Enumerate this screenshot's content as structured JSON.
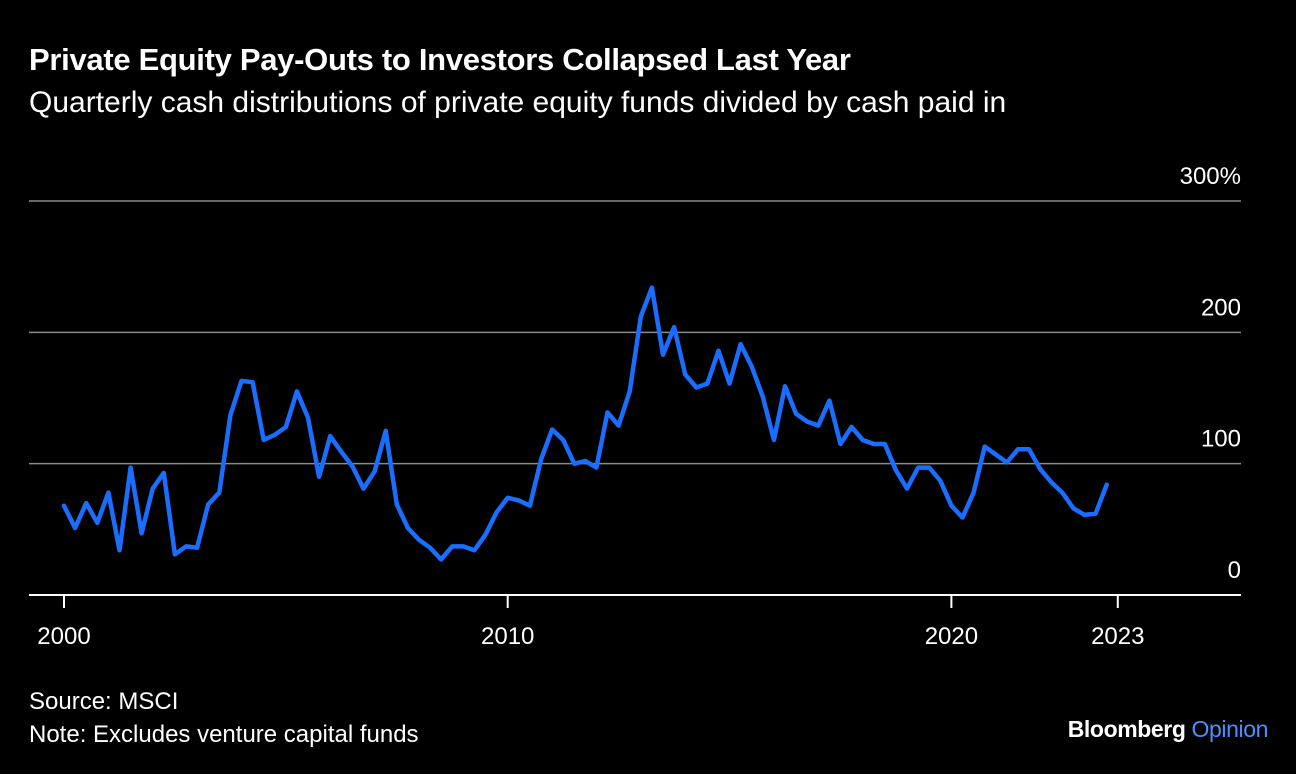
{
  "header": {
    "title": "Private Equity Pay-Outs to Investors Collapsed Last Year",
    "subtitle": "Quarterly cash distributions of private equity funds divided by cash paid in"
  },
  "footer": {
    "source": "Source: MSCI",
    "note": "Note: Excludes venture capital funds"
  },
  "brand": {
    "name": "Bloomberg",
    "sub": "Opinion",
    "sub_color": "#4a90ff"
  },
  "colors": {
    "background": "#000000",
    "line": "#1a6eff",
    "grid": "#8a8a8a",
    "text": "#ffffff"
  },
  "chart_data": {
    "type": "line",
    "title": "",
    "xlabel": "",
    "ylabel": "",
    "xlim": [
      1999.2,
      2025.5
    ],
    "ylim": [
      0,
      300
    ],
    "y_ticks": [
      {
        "value": 0,
        "label": "0"
      },
      {
        "value": 100,
        "label": "100"
      },
      {
        "value": 200,
        "label": "200"
      },
      {
        "value": 300,
        "label": "300%"
      }
    ],
    "x_ticks": [
      {
        "value": 2000,
        "label": "2000"
      },
      {
        "value": 2010,
        "label": "2010"
      },
      {
        "value": 2020,
        "label": "2020"
      },
      {
        "value": 2023.75,
        "label": "2023"
      }
    ],
    "grid": true,
    "legend": "none",
    "series": [
      {
        "values": [
          [
            2000.0,
            68
          ],
          [
            2000.25,
            51
          ],
          [
            2000.5,
            70
          ],
          [
            2000.75,
            55
          ],
          [
            2001.0,
            78
          ],
          [
            2001.25,
            34
          ],
          [
            2001.5,
            97
          ],
          [
            2001.75,
            47
          ],
          [
            2002.0,
            81
          ],
          [
            2002.25,
            93
          ],
          [
            2002.5,
            31
          ],
          [
            2002.75,
            37
          ],
          [
            2003.0,
            36
          ],
          [
            2003.25,
            69
          ],
          [
            2003.5,
            78
          ],
          [
            2003.75,
            137
          ],
          [
            2004.0,
            163
          ],
          [
            2004.25,
            162
          ],
          [
            2004.5,
            118
          ],
          [
            2004.75,
            122
          ],
          [
            2005.0,
            128
          ],
          [
            2005.25,
            155
          ],
          [
            2005.5,
            135
          ],
          [
            2005.75,
            90
          ],
          [
            2006.0,
            121
          ],
          [
            2006.25,
            109
          ],
          [
            2006.5,
            98
          ],
          [
            2006.75,
            81
          ],
          [
            2007.0,
            94
          ],
          [
            2007.25,
            125
          ],
          [
            2007.5,
            69
          ],
          [
            2007.75,
            51
          ],
          [
            2008.0,
            42
          ],
          [
            2008.25,
            36
          ],
          [
            2008.5,
            27
          ],
          [
            2008.75,
            37
          ],
          [
            2009.0,
            37
          ],
          [
            2009.25,
            34
          ],
          [
            2009.5,
            46
          ],
          [
            2009.75,
            63
          ],
          [
            2010.0,
            74
          ],
          [
            2010.25,
            72
          ],
          [
            2010.5,
            68
          ],
          [
            2010.75,
            103
          ],
          [
            2011.0,
            126
          ],
          [
            2011.25,
            118
          ],
          [
            2011.5,
            100
          ],
          [
            2011.75,
            102
          ],
          [
            2012.0,
            97
          ],
          [
            2012.25,
            139
          ],
          [
            2012.5,
            129
          ],
          [
            2012.75,
            155
          ],
          [
            2013.0,
            212
          ],
          [
            2013.25,
            234
          ],
          [
            2013.5,
            183
          ],
          [
            2013.75,
            204
          ],
          [
            2014.0,
            168
          ],
          [
            2014.25,
            158
          ],
          [
            2014.5,
            161
          ],
          [
            2014.75,
            186
          ],
          [
            2015.0,
            161
          ],
          [
            2015.25,
            191
          ],
          [
            2015.5,
            174
          ],
          [
            2015.75,
            151
          ],
          [
            2016.0,
            118
          ],
          [
            2016.25,
            159
          ],
          [
            2016.5,
            138
          ],
          [
            2016.75,
            132
          ],
          [
            2017.0,
            129
          ],
          [
            2017.25,
            148
          ],
          [
            2017.5,
            115
          ],
          [
            2017.75,
            128
          ],
          [
            2018.0,
            118
          ],
          [
            2018.25,
            115
          ],
          [
            2018.5,
            115
          ],
          [
            2018.75,
            95
          ],
          [
            2019.0,
            81
          ],
          [
            2019.25,
            97
          ],
          [
            2019.5,
            97
          ],
          [
            2019.75,
            87
          ],
          [
            2020.0,
            68
          ],
          [
            2020.25,
            59
          ],
          [
            2020.5,
            78
          ],
          [
            2020.75,
            113
          ],
          [
            2021.0,
            107
          ],
          [
            2021.25,
            101
          ],
          [
            2021.5,
            111
          ],
          [
            2021.75,
            111
          ],
          [
            2022.0,
            96
          ],
          [
            2022.25,
            86
          ],
          [
            2022.5,
            78
          ],
          [
            2022.75,
            66
          ],
          [
            2023.0,
            61
          ],
          [
            2023.25,
            62
          ],
          [
            2023.5,
            84
          ]
        ]
      }
    ]
  }
}
